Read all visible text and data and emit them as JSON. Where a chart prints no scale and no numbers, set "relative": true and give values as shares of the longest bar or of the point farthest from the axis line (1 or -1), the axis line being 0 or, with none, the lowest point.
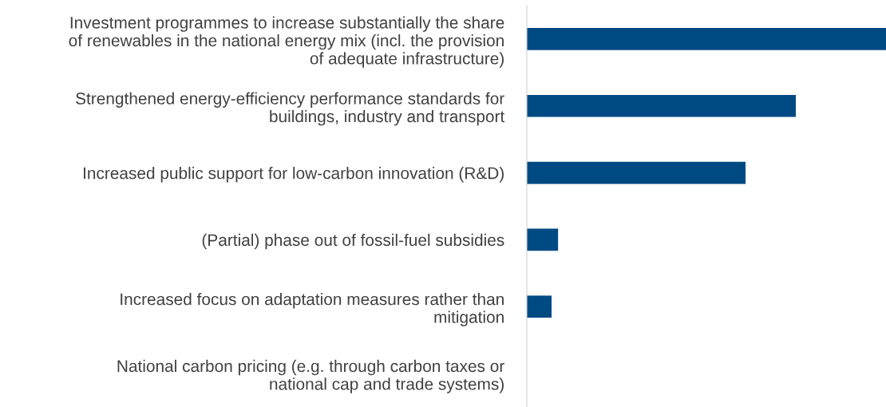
{
  "chart_data": {
    "type": "bar",
    "orientation": "horizontal",
    "relative": true,
    "categories": [
      "Investment programmes to increase substantially the share\nof renewables in the national energy mix (incl. the provision\nof adequate infrastructure)",
      "Strengthened energy-efficiency performance standards for\nbuildings, industry and transport",
      "Increased public support for low-carbon innovation (R&D)",
      "(Partial) phase out of fossil-fuel subsidies",
      "Increased focus on adaptation measures rather than\nmitigation",
      "National carbon pricing (e.g. through carbon taxes or\nnational cap and trade systems)"
    ],
    "values": [
      1,
      0.749,
      0.609,
      0.087,
      0.069,
      0
    ],
    "color": "#004a83",
    "grid": false,
    "legend": false,
    "tick_labels": "y"
  }
}
